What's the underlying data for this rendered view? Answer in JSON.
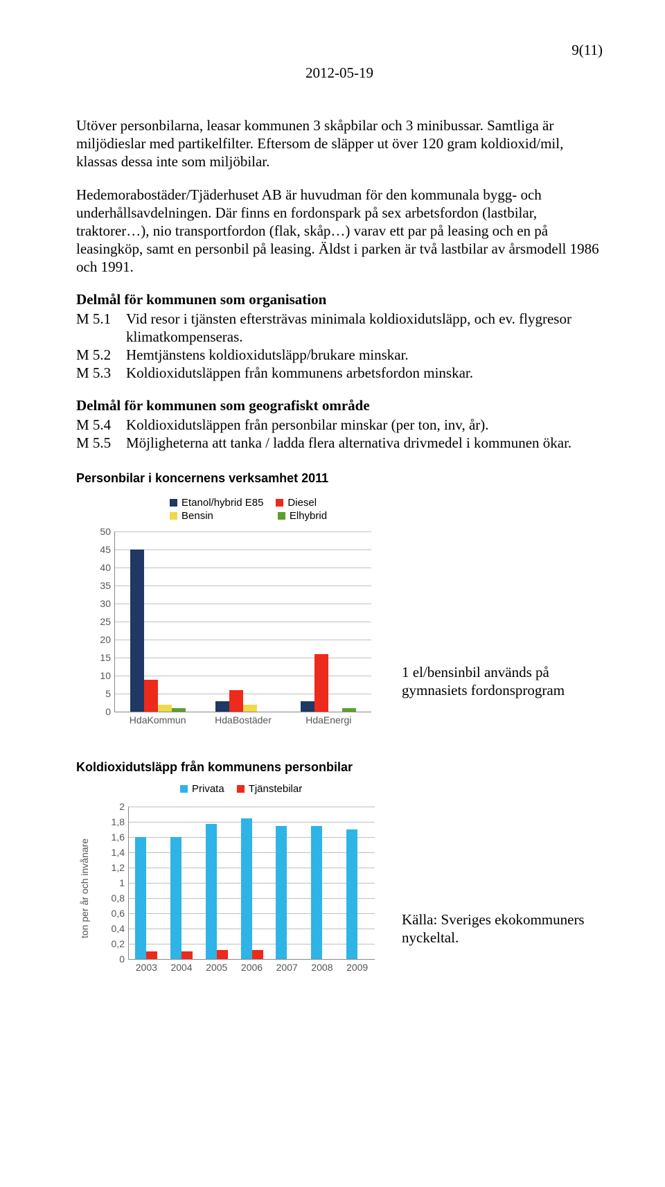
{
  "page_number": "9(11)",
  "date": "2012-05-19",
  "paragraphs": {
    "p1": "Utöver personbilarna, leasar kommunen 3 skåpbilar och 3 minibussar. Samtliga är miljödieslar med partikelfilter. Eftersom de släpper ut över 120 gram koldioxid/mil, klassas dessa inte som miljöbilar.",
    "p2": "Hedemorabostäder/Tjäderhuset AB är huvudman för den kommunala bygg- och underhållsavdelningen. Där finns en fordonspark på sex arbetsfordon (lastbilar, traktorer…), nio transportfordon (flak, skåp…) varav ett par på leasing och en på leasingköp, samt en personbil på leasing. Äldst i parken är två lastbilar av årsmodell 1986 och 1991."
  },
  "section1": {
    "title": "Delmål för kommunen som organisation",
    "items": [
      {
        "key": "M 5.1",
        "text": "Vid resor i tjänsten eftersträvas minimala koldioxidutsläpp, och ev. flygresor klimatkompenseras."
      },
      {
        "key": "M 5.2",
        "text": "Hemtjänstens koldioxidutsläpp/brukare minskar."
      },
      {
        "key": "M 5.3",
        "text": "Koldioxidutsläppen från kommunens arbetsfordon minskar."
      }
    ]
  },
  "section2": {
    "title": "Delmål för kommunen som geografiskt område",
    "items": [
      {
        "key": "M 5.4",
        "text": "Koldioxidutsläppen från personbilar minskar (per ton, inv, år)."
      },
      {
        "key": "M 5.5",
        "text": "Möjligheterna att tanka / ladda flera alternativa drivmedel i kommunen ökar."
      }
    ]
  },
  "chart1": {
    "title": "Personbilar i koncernens verksamhet 2011",
    "type": "bar",
    "legend": [
      {
        "label": "Etanol/hybrid E85",
        "color": "#1f3864"
      },
      {
        "label": "Diesel",
        "color": "#ed2a1c"
      },
      {
        "label": "Bensin",
        "color": "#f2d94a"
      },
      {
        "label": "Elhybrid",
        "color": "#5aa02c"
      }
    ],
    "categories": [
      "HdaKommun",
      "HdaBostäder",
      "HdaEnergi"
    ],
    "series_colors": [
      "#1f3864",
      "#ed2a1c",
      "#f2d94a",
      "#5aa02c"
    ],
    "values": [
      [
        45,
        9,
        2,
        1
      ],
      [
        3,
        6,
        2,
        0
      ],
      [
        3,
        16,
        0,
        1
      ]
    ],
    "ylim": [
      0,
      50
    ],
    "ytick_step": 5,
    "yticks": [
      "0",
      "5",
      "10",
      "15",
      "20",
      "25",
      "30",
      "35",
      "40",
      "45",
      "50"
    ],
    "side_note": "1 el/bensinbil används på gymnasiets fordonsprogram",
    "background_color": "#ffffff",
    "grid_color": "#bfbfbf"
  },
  "chart2": {
    "title": "Koldioxidutsläpp från kommunens personbilar",
    "type": "bar",
    "legend": [
      {
        "label": "Privata",
        "color": "#2eb4e6"
      },
      {
        "label": "Tjänstebilar",
        "color": "#ed2a1c"
      }
    ],
    "categories": [
      "2003",
      "2004",
      "2005",
      "2006",
      "2007",
      "2008",
      "2009"
    ],
    "series_colors": [
      "#2eb4e6",
      "#ed2a1c"
    ],
    "values": [
      [
        1.6,
        0.1
      ],
      [
        1.6,
        0.1
      ],
      [
        1.78,
        0.12
      ],
      [
        1.85,
        0.12
      ],
      [
        1.75,
        0.0
      ],
      [
        1.75,
        0.0
      ],
      [
        1.7,
        0.0
      ]
    ],
    "ylim": [
      0,
      2
    ],
    "ytick_step": 0.2,
    "yticks": [
      "0",
      "0,2",
      "0,4",
      "0,6",
      "0,8",
      "1",
      "1,2",
      "1,4",
      "1,6",
      "1,8",
      "2"
    ],
    "ylabel": "ton per år och invånare",
    "side_note": "Källa: Sveriges ekokommuners nyckeltal.",
    "background_color": "#ffffff",
    "grid_color": "#bfbfbf"
  }
}
